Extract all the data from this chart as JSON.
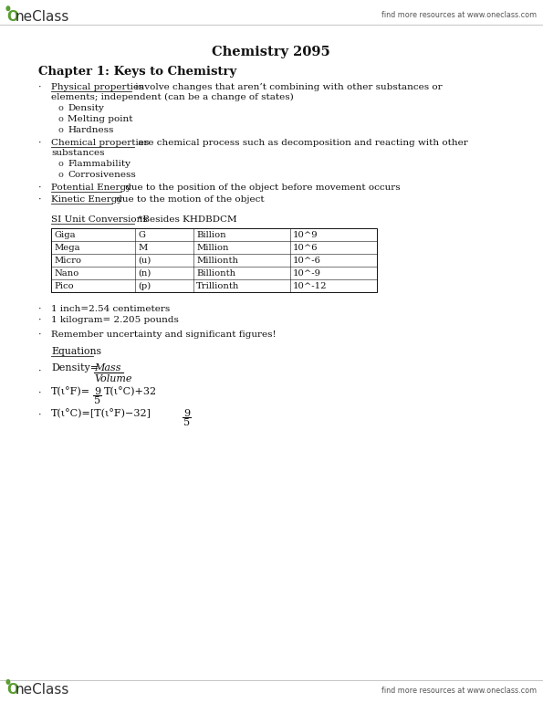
{
  "bg_color": "#ffffff",
  "header_right_text": "find more resources at www.oneclass.com",
  "footer_right_text": "find more resources at www.oneclass.com",
  "title": "Chemistry 2095",
  "chapter_title": "Chapter 1: Keys to Chemistry",
  "table_title_underline": "SI Unit Conversions",
  "table_title_rest": " *Besides KHDBDCM",
  "table_data": [
    [
      "Giga",
      "G",
      "Billion",
      "10^9"
    ],
    [
      "Mega",
      "M",
      "Million",
      "10^6"
    ],
    [
      "Micro",
      "(u)",
      "Millionth",
      "10^-6"
    ],
    [
      "Nano",
      "(n)",
      "Billionth",
      "10^-9"
    ],
    [
      "Pico",
      "(p)",
      "Trillionth",
      "10^-12"
    ]
  ],
  "conversions": [
    "1 inch=2.54 centimeters",
    "1 kilogram= 2.205 pounds"
  ],
  "remember": "Remember uncertainty and significant figures!",
  "equations_title": "Equations"
}
